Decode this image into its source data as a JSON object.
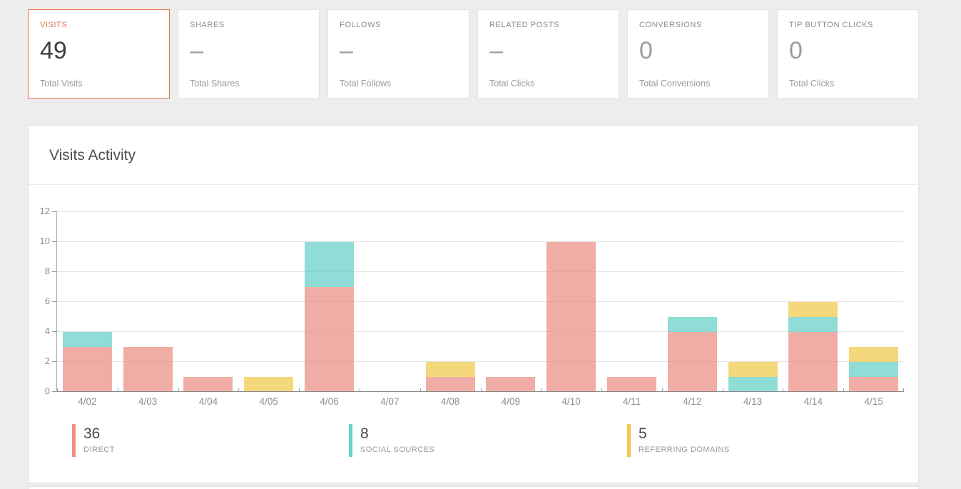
{
  "stat_cards": [
    {
      "label": "VISITS",
      "value": "49",
      "sublabel": "Total Visits",
      "active": true
    },
    {
      "label": "SHARES",
      "value": "–",
      "sublabel": "Total Shares",
      "active": false
    },
    {
      "label": "FOLLOWS",
      "value": "–",
      "sublabel": "Total Follows",
      "active": false
    },
    {
      "label": "RELATED POSTS",
      "value": "–",
      "sublabel": "Total Clicks",
      "active": false
    },
    {
      "label": "CONVERSIONS",
      "value": "0",
      "sublabel": "Total Conversions",
      "active": false
    },
    {
      "label": "TIP BUTTON CLICKS",
      "value": "0",
      "sublabel": "Total Clicks",
      "active": false
    }
  ],
  "panel": {
    "title": "Visits Activity"
  },
  "chart_data": {
    "type": "bar",
    "stacked": true,
    "title": "Visits Activity",
    "xlabel": "",
    "ylabel": "",
    "ylim": [
      0,
      12
    ],
    "yticks": [
      0,
      2,
      4,
      6,
      8,
      10,
      12
    ],
    "grid": true,
    "legend_position": "bottom",
    "categories": [
      "4/02",
      "4/03",
      "4/04",
      "4/05",
      "4/06",
      "4/07",
      "4/08",
      "4/09",
      "4/10",
      "4/11",
      "4/12",
      "4/13",
      "4/14",
      "4/15"
    ],
    "series": [
      {
        "name": "Direct",
        "total": 36,
        "color": "#ea8f83",
        "values": [
          3,
          3,
          1,
          0,
          7,
          0,
          1,
          1,
          10,
          1,
          4,
          0,
          4,
          1
        ]
      },
      {
        "name": "Social Sources",
        "total": 8,
        "color": "#66d1c7",
        "values": [
          1,
          0,
          0,
          0,
          3,
          0,
          0,
          0,
          0,
          0,
          1,
          1,
          1,
          1
        ]
      },
      {
        "name": "Referring Domains",
        "total": 5,
        "color": "#f2c94c",
        "values": [
          0,
          0,
          0,
          1,
          0,
          0,
          1,
          0,
          0,
          0,
          0,
          1,
          1,
          1
        ]
      }
    ],
    "legend": [
      {
        "value": "36",
        "label": "DIRECT"
      },
      {
        "value": "8",
        "label": "SOCIAL SOURCES"
      },
      {
        "value": "5",
        "label": "REFERRING DOMAINS"
      }
    ]
  },
  "colors": {
    "accent": "#e8714e",
    "page_background": "#ededed",
    "axis": "#8a8a8a",
    "gridline": "#e4e4e4"
  }
}
